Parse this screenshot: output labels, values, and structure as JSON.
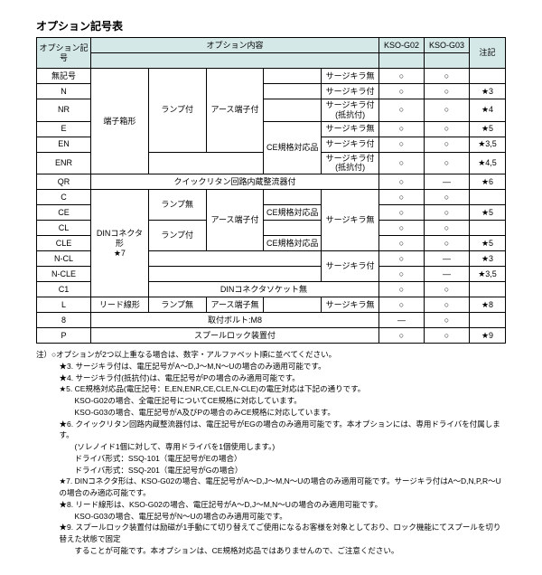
{
  "title": "オプション記号表",
  "headers": {
    "code": "オプション記号",
    "content": "オプション内容",
    "g02": "KSO-G02",
    "g03": "KSO-G03",
    "note": "注記"
  },
  "cells": {
    "no_code": "無記号",
    "terminal_box": "端子箱形",
    "din_connector": "DINコネクタ形",
    "din_star": "★7",
    "lead_wire": "リード線形",
    "lamp_on": "ランプ付",
    "lamp_off": "ランプ無",
    "earth_on": "アース端子付",
    "earth_off": "アース端子無",
    "ce": "CE規格対応品",
    "surge_off": "サージキラ無",
    "surge_on": "サージキラ付",
    "surge_r": "サージキラ付(抵抗付)",
    "quick": "クイックリタン回路内蔵整流器付",
    "din_socket_off": "DINコネクタソケット無",
    "bolt_m8": "取付ボルト:M8",
    "spool_lock": "スプールロック装置付",
    "circle": "○",
    "dash": "―",
    "s3": "★3",
    "s4": "★4",
    "s5": "★5",
    "s35": "★3,5",
    "s45": "★4,5",
    "s6": "★6",
    "s8": "★8",
    "s9": "★9"
  },
  "codes": {
    "N": "N",
    "NR": "NR",
    "E": "E",
    "EN": "EN",
    "ENR": "ENR",
    "QR": "QR",
    "C": "C",
    "CE": "CE",
    "CL": "CL",
    "CLE": "CLE",
    "NCL": "N-CL",
    "NCLE": "N-CLE",
    "C1": "C1",
    "L": "L",
    "8": "8",
    "P": "P"
  },
  "notes": {
    "l0": "注）○オプションが2つ以上重なる場合は、数字・アルファベット順に並べてください。",
    "l3": "★3. サージキラ付は、電圧記号がA～D,J～M,N～Uの場合のみ適用可能です。",
    "l4": "★4. サージキラ付(抵抗付)は、電圧記号がPの場合のみ適用可能です。",
    "l5": "★5. CE規格対応品(電圧記号：E,EN,ENR,CE,CLE,N-CLE)の電圧対応は下記の通りです。",
    "l5a": "KSO-G02の場合、全電圧記号についてCE規格に対応しています。",
    "l5b": "KSO-G03の場合、電圧記号がA及びPの場合のみCE規格に対応しています。",
    "l6": "★6. クイックリタン回路内蔵整流器付は、電圧記号がEGの場合のみ適用可能です。本オプションには、専用ドライバを付属します。",
    "l6a": "(ソレノイド1個に対して、専用ドライバを1個使用します。)",
    "l6b": "ドライバ形式：SSQ-101（電圧記号がEの場合）",
    "l6c": "ドライバ形式：SSQ-201（電圧記号がGの場合）",
    "l7": "★7. DINコネクタ形は、KSO-G02の場合、電圧記号がA～D,J～M,N～Uの場合のみ適用可能です。サージキラ付はA～D,N,P,R～Uの場合のみ適応可能です。",
    "l8": "★8. リード線形は、KSO-G02の場合、電圧記号がA～D,J～M,N～Uの場合のみ適用可能です。",
    "l8a": "KSO-G03の場合、電圧記号がN～Uの場合のみ適用可能です。",
    "l9": "★9. スプールロック装置付は励磁が1手動にて切り替えてご使用になるお客様を対象としており、ロック機能にてスプールを切り替えた状態で固定",
    "l9a": "することが可能です。本オプションは、CE規格対応品ではありませんので、ご注意ください。"
  }
}
